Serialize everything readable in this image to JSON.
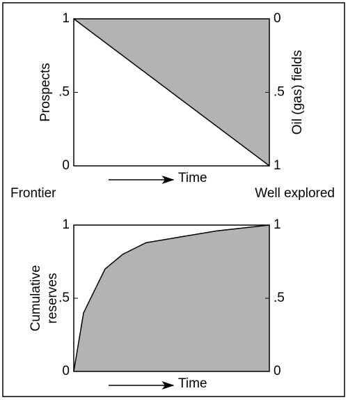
{
  "chart_data": [
    {
      "type": "area",
      "x": [
        0,
        1
      ],
      "xlim": [
        0,
        1
      ],
      "xlabel": "Time",
      "ylabel": [
        "Prospects"
      ],
      "y2label": "Oil (gas) fields",
      "ylim": [
        0,
        1
      ],
      "yticks": [
        0,
        {
          "value": 0.5,
          "label": ".5"
        },
        1
      ],
      "y2lim": [
        1,
        0
      ],
      "y2ticks": [
        0,
        {
          "value": 0.5,
          "label": ".5"
        },
        1
      ],
      "annotations": [
        "Frontier",
        "Well explored"
      ],
      "series": [
        {
          "axis": "y2",
          "fill": "#b3b3b3",
          "values": [
            0,
            1
          ]
        },
        {
          "color": "#000000",
          "values": [
            1,
            0
          ]
        }
      ]
    },
    {
      "type": "area",
      "x": [
        0,
        0.025,
        0.05,
        0.09,
        0.16,
        0.25,
        0.37,
        0.55,
        0.73,
        1
      ],
      "xlim": [
        0,
        1
      ],
      "xlabel": "Time",
      "ylabel": [
        "Cumulative",
        "reserves"
      ],
      "ylim": [
        0,
        1
      ],
      "yticks": [
        0,
        {
          "value": 0.5,
          "label": ".5"
        },
        1
      ],
      "y2lim": [
        0,
        1
      ],
      "y2ticks": [
        0,
        {
          "value": 0.5,
          "label": ".5"
        },
        1
      ],
      "series": [
        {
          "color": "#000000",
          "fill": "#b3b3b3",
          "values": [
            0,
            0.2,
            0.4,
            0.51,
            0.7,
            0.8,
            0.88,
            0.92,
            0.96,
            1
          ]
        }
      ]
    }
  ]
}
